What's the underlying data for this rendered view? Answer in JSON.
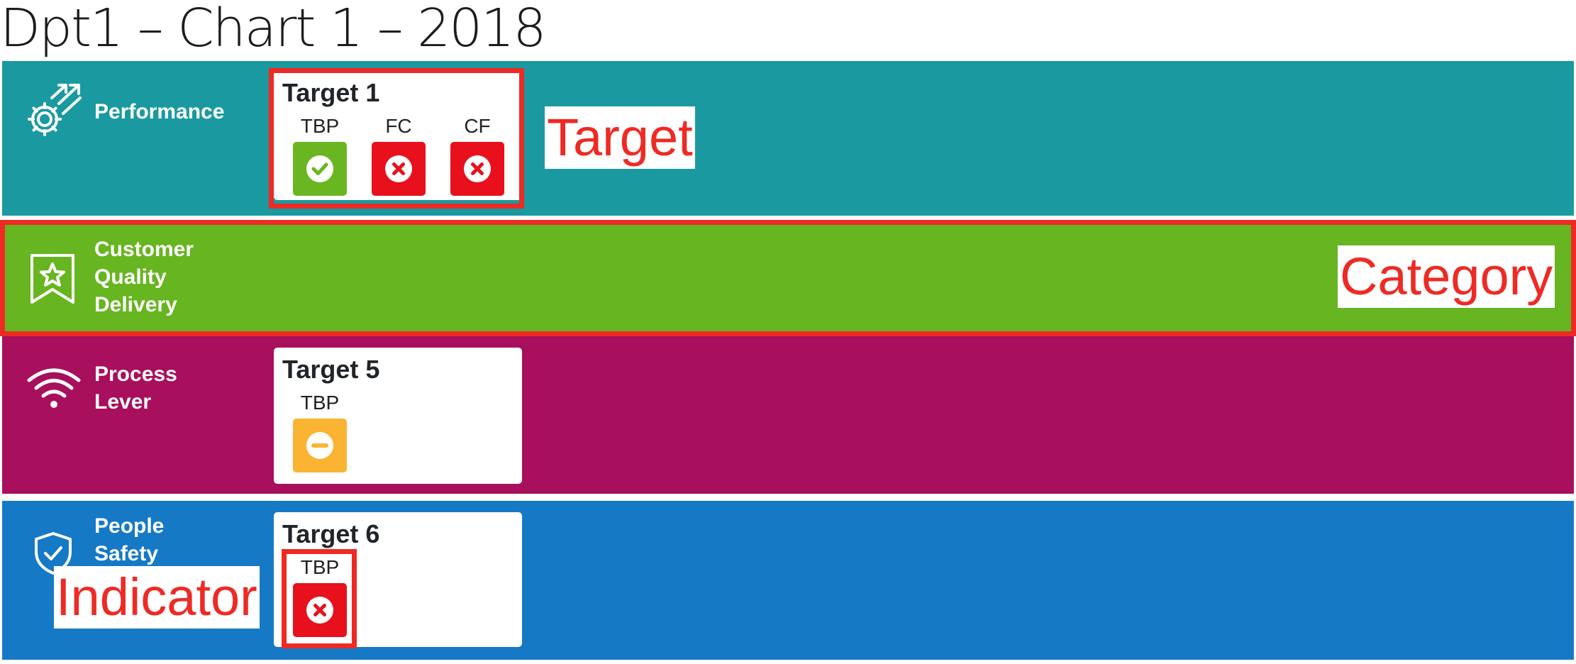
{
  "page": {
    "title": "Dpt1 – Chart 1 – 2018"
  },
  "categories": [
    {
      "label": "Performance",
      "icon": "gear-arrows-icon",
      "color": "#1a9aa0",
      "targets": [
        {
          "title": "Target 1",
          "indicators": [
            {
              "label": "TBP",
              "status": "ok",
              "icon": "check-circle-icon",
              "color": "#6ab621"
            },
            {
              "label": "FC",
              "status": "fail",
              "icon": "x-circle-icon",
              "color": "#e8101c"
            },
            {
              "label": "CF",
              "status": "fail",
              "icon": "x-circle-icon",
              "color": "#e8101c"
            }
          ]
        }
      ]
    },
    {
      "label": "Customer\nQuality\nDelivery",
      "icon": "star-ribbon-icon",
      "color": "#67b520",
      "targets": []
    },
    {
      "label": "Process\nLever",
      "icon": "wifi-icon",
      "color": "#a80f5c",
      "targets": [
        {
          "title": "Target 5",
          "indicators": [
            {
              "label": "TBP",
              "status": "neutral",
              "icon": "minus-circle-icon",
              "color": "#fbb332"
            }
          ]
        }
      ]
    },
    {
      "label": "People\nSafety",
      "icon": "shield-check-icon",
      "color": "#1679c6",
      "targets": [
        {
          "title": "Target 6",
          "indicators": [
            {
              "label": "TBP",
              "status": "fail",
              "icon": "x-circle-icon",
              "color": "#e8101c"
            }
          ]
        }
      ]
    }
  ],
  "annotations": {
    "target": "Target",
    "category": "Category",
    "indicator": "Indicator",
    "color": "#ee2a24"
  }
}
